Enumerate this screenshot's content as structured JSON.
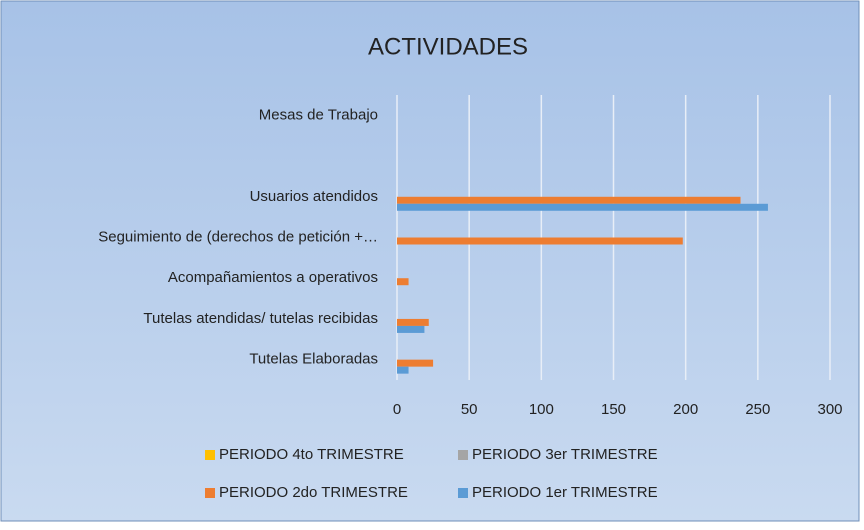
{
  "chart_data": {
    "type": "hbar",
    "title": "ACTIVIDADES",
    "categories": [
      "Mesas de Trabajo",
      null,
      "Usuarios atendidos",
      "Seguimiento de (derechos de petición +…",
      "Acompañamientos a operativos",
      "Tutelas atendidas/ tutelas recibidas",
      "Tutelas Elaboradas"
    ],
    "series": [
      {
        "name": "PERIODO 4to TRIMESTRE",
        "color": "#ffc000",
        "values": [
          0,
          0,
          0,
          0,
          0,
          0,
          0
        ]
      },
      {
        "name": "PERIODO 3er TRIMESTRE",
        "color": "#a5a5a5",
        "values": [
          0,
          0,
          0,
          0,
          0,
          0,
          0
        ]
      },
      {
        "name": "PERIODO 2do TRIMESTRE",
        "color": "#ed7d31",
        "values": [
          0,
          0,
          238,
          198,
          8,
          22,
          25
        ]
      },
      {
        "name": "PERIODO 1er TRIMESTRE",
        "color": "#5b9bd5",
        "values": [
          0,
          0,
          257,
          0,
          0,
          19,
          8
        ]
      }
    ],
    "xlim": [
      0,
      300
    ],
    "xticks": [
      0,
      50,
      100,
      150,
      200,
      250,
      300
    ],
    "grid": true
  }
}
